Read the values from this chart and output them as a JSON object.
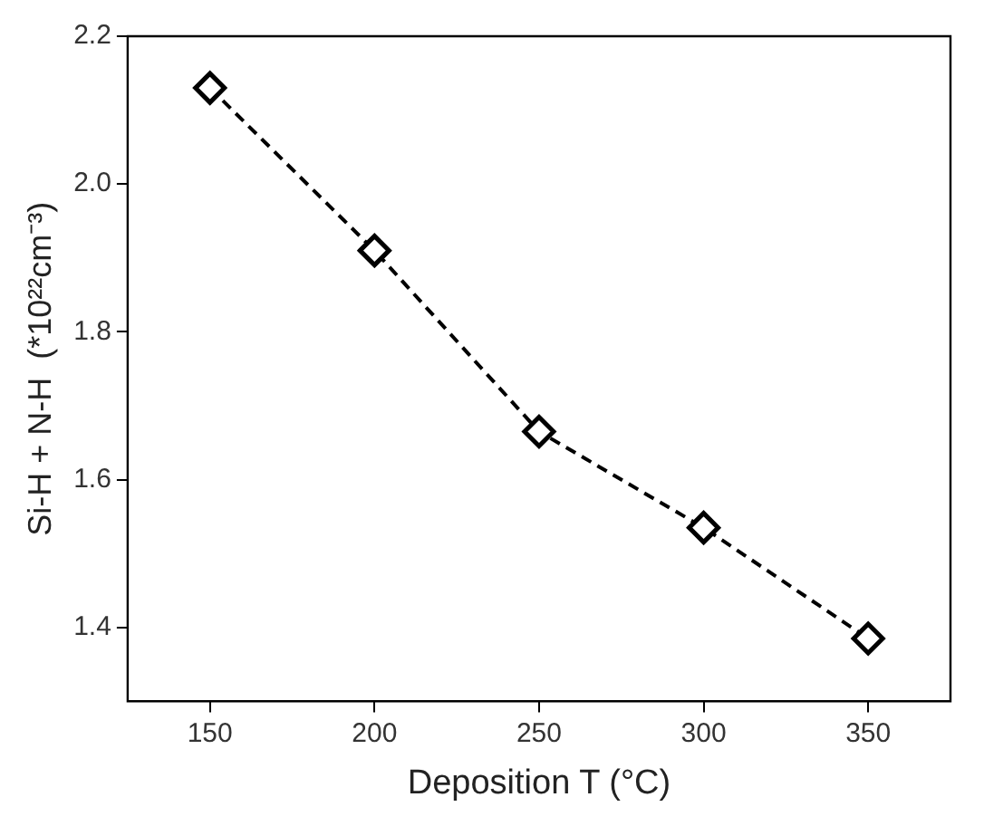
{
  "chart_data": {
    "type": "line",
    "xlabel": "Deposition T (°C)",
    "ylabel": "Si-H + N-H  (*10²²cm⁻³)",
    "x": [
      150,
      200,
      250,
      300,
      350
    ],
    "series": [
      {
        "color": "#000000",
        "values": [
          2.13,
          1.91,
          1.665,
          1.535,
          1.385
        ]
      }
    ],
    "xlim": [
      125,
      375
    ],
    "xticks": [
      150,
      200,
      250,
      300,
      350
    ],
    "ylim": [
      1.3,
      2.2
    ],
    "yticks": [
      1.4,
      1.6,
      1.8,
      {
        "value": 2,
        "label": "2.0"
      },
      2.2
    ],
    "marker": "diamond",
    "line_style": "dashed",
    "grid": false,
    "legend": false
  }
}
